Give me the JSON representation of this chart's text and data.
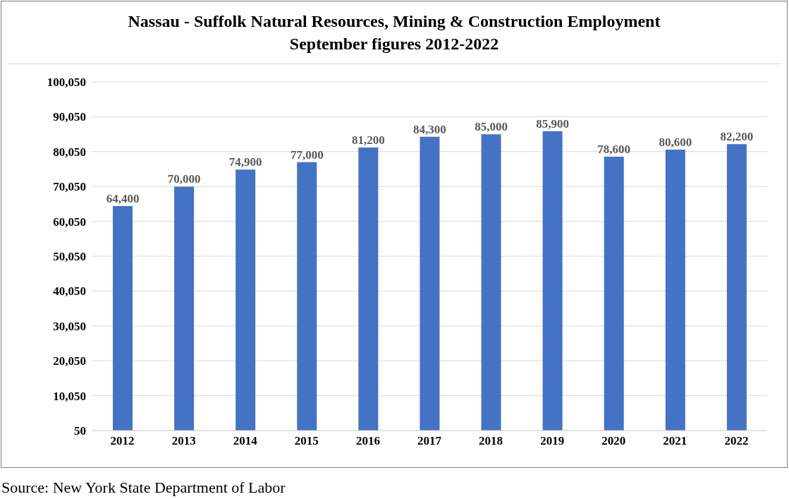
{
  "chart_data": {
    "type": "bar",
    "title": "Nassau - Suffolk Natural Resources, Mining & Construction Employment",
    "subtitle": "September figures 2012-2022",
    "categories": [
      "2012",
      "2013",
      "2014",
      "2015",
      "2016",
      "2017",
      "2018",
      "2019",
      "2020",
      "2021",
      "2022"
    ],
    "values": [
      64400,
      70000,
      74900,
      77000,
      81200,
      84300,
      85000,
      85900,
      78600,
      80600,
      82200
    ],
    "value_labels": [
      "64,400",
      "70,000",
      "74,900",
      "77,000",
      "81,200",
      "84,300",
      "85,000",
      "85,900",
      "78,600",
      "80,600",
      "82,200"
    ],
    "color": "#4472c4",
    "ylim": [
      50,
      100050
    ],
    "yticks": [
      50,
      {
        "value": 10050,
        "label": "10,050"
      },
      {
        "value": 20050,
        "label": "20,050"
      },
      {
        "value": 30050,
        "label": "30,050"
      },
      {
        "value": 40050,
        "label": "40,050"
      },
      {
        "value": 50050,
        "label": "50,050"
      },
      {
        "value": 60050,
        "label": "60,050"
      },
      {
        "value": 70050,
        "label": "70,050"
      },
      {
        "value": 80050,
        "label": "80,050"
      },
      {
        "value": 90050,
        "label": "90,050"
      },
      {
        "value": 100050,
        "label": "100,050"
      }
    ],
    "grid": "y",
    "annotations": [
      "Source: New York State Department of Labor"
    ]
  }
}
